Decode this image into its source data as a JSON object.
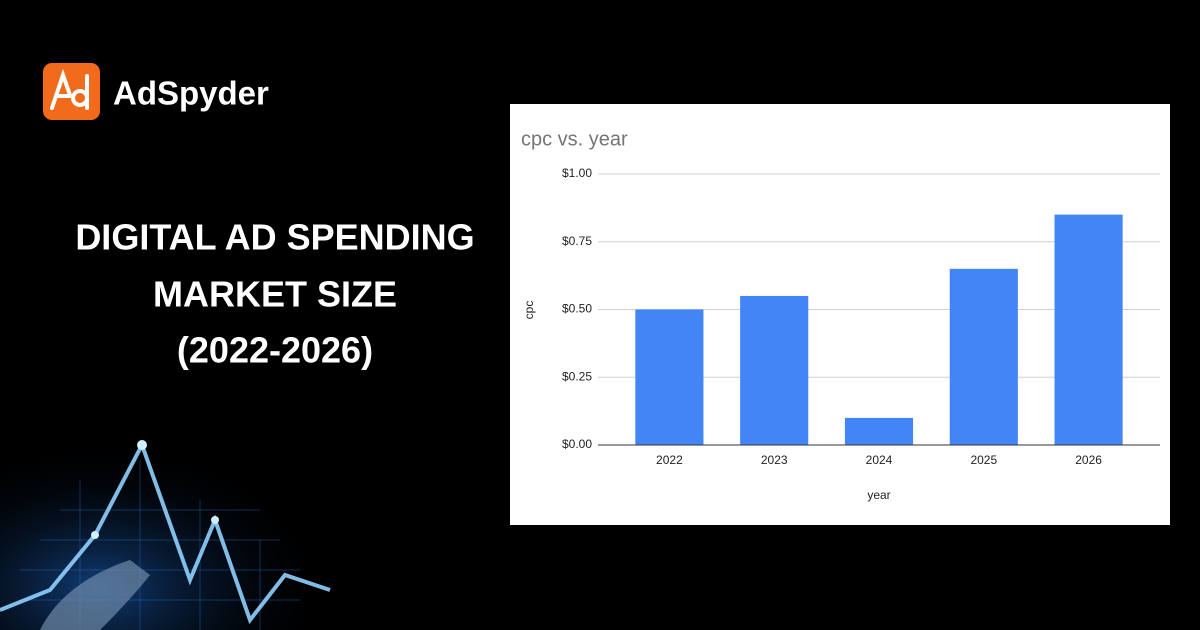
{
  "brand": "AdSpyder",
  "headline": [
    "DIGITAL AD SPENDING",
    "MARKET SIZE",
    "(2022-2026)"
  ],
  "chart_data": {
    "type": "bar",
    "title": "cpc vs. year",
    "x_label": "year",
    "y_label": "cpc",
    "categories": [
      "2022",
      "2023",
      "2024",
      "2025",
      "2026"
    ],
    "values": [
      0.5,
      0.55,
      0.1,
      0.65,
      0.85
    ],
    "color": "#4285f4",
    "ylim": [
      0,
      1
    ],
    "yticks": [
      {
        "value": 0,
        "label": "$0.00"
      },
      {
        "value": 0.25,
        "label": "$0.25"
      },
      {
        "value": 0.5,
        "label": "$0.50"
      },
      {
        "value": 0.75,
        "label": "$0.75"
      },
      {
        "value": 1,
        "label": "$1.00"
      }
    ],
    "grid": true
  }
}
